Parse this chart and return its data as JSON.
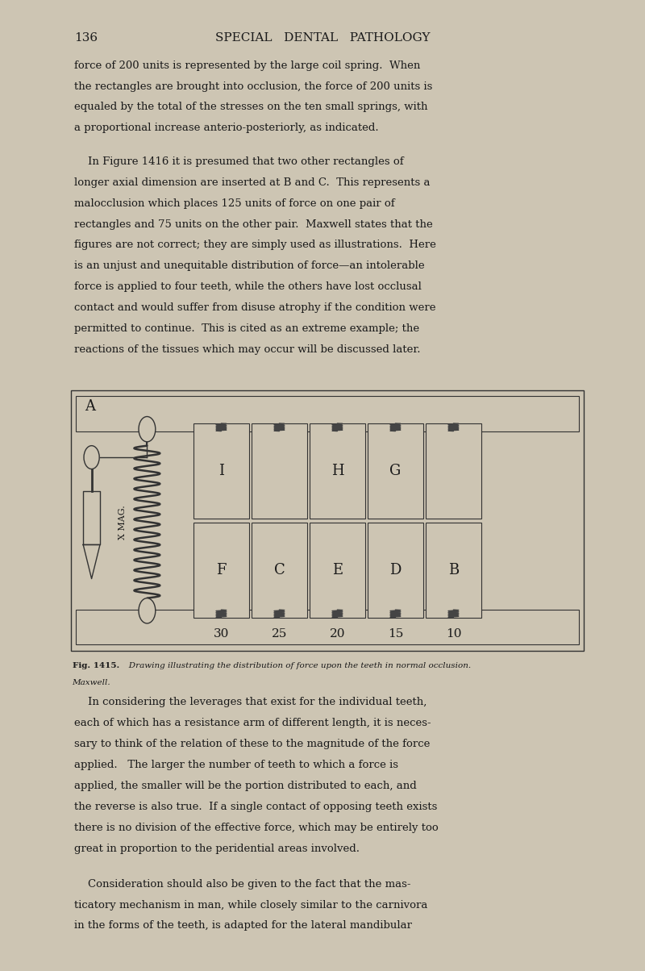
{
  "bg_color": "#cdc5b3",
  "text_color": "#1a1a1a",
  "page_number": "136",
  "page_header": "SPECIAL   DENTAL   PATHOLOGY",
  "paragraph1": "force of 200 units is represented by the large coil spring.  When\nthe rectangles are brought into occlusion, the force of 200 units is\nequaled by the total of the stresses on the ten small springs, with\na proportional increase anterio-posteriorly, as indicated.",
  "paragraph2_indent": "    In Figure 1416 it is presumed that two other rectangles of\nlonger axial dimension are inserted at B and C.  This represents a\nmalocclusion which places 125 units of force on one pair of\nrectangles and 75 units on the other pair.  Maxwell states that the\nfigures are not correct; they are simply used as illustrations.  Here\nis an unjust and unequitable distribution of force—an intolerable\nforce is applied to four teeth, while the others have lost occlusal\ncontact and would suffer from disuse atrophy if the condition were\npermitted to continue.  This is cited as an extreme example; the\nreactions of the tissues which may occur will be discussed later.",
  "paragraph3_indent": "    In considering the leverages that exist for the individual teeth,\neach of which has a resistance arm of different length, it is neces-\nsary to think of the relation of these to the magnitude of the force\napplied.   The larger the number of teeth to which a force is\napplied, the smaller will be the portion distributed to each, and\nthe reverse is also true.  If a single contact of opposing teeth exists\nthere is no division of the effective force, which may be entirely too\ngreat in proportion to the peridential areas involved.",
  "paragraph4_indent": "    Consideration should also be given to the fact that the mas-\nticatory mechanism in man, while closely similar to the carnivora\nin the forms of the teeth, is adapted for the lateral mandibular",
  "fig_caption_bold": "Fig. 1415.",
  "fig_caption_rest": "   Drawing illustrating the distribution of force upon the teeth in normal occlusion.",
  "fig_caption_line2": "Maxwell.",
  "col_top_labels": [
    "I",
    "",
    "H",
    "G",
    ""
  ],
  "col_bot_labels": [
    "F",
    "C",
    "E",
    "D",
    "B"
  ],
  "col_values": [
    "30",
    "25",
    "20",
    "15",
    "10"
  ],
  "spring_label": "X MAG.",
  "anchor_label": "A"
}
